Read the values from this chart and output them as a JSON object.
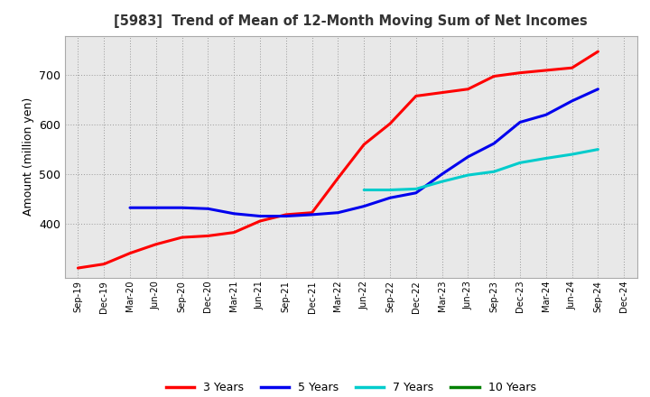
{
  "title": "[5983]  Trend of Mean of 12-Month Moving Sum of Net Incomes",
  "ylabel": "Amount (million yen)",
  "ylim": [
    290,
    780
  ],
  "yticks": [
    400,
    500,
    600,
    700
  ],
  "background_color": "#ffffff",
  "plot_bg_color": "#e8e8e8",
  "grid_color": "#999999",
  "x_labels": [
    "Sep-19",
    "Dec-19",
    "Mar-20",
    "Jun-20",
    "Sep-20",
    "Dec-20",
    "Mar-21",
    "Jun-21",
    "Sep-21",
    "Dec-21",
    "Mar-22",
    "Jun-22",
    "Sep-22",
    "Dec-22",
    "Mar-23",
    "Jun-23",
    "Sep-23",
    "Dec-23",
    "Mar-24",
    "Jun-24",
    "Sep-24",
    "Dec-24"
  ],
  "series": [
    {
      "name": "3 Years",
      "color": "#ff0000",
      "data": [
        310,
        318,
        340,
        358,
        372,
        375,
        382,
        405,
        418,
        422,
        492,
        560,
        602,
        658,
        665,
        672,
        698,
        705,
        710,
        715,
        748,
        null
      ]
    },
    {
      "name": "5 Years",
      "color": "#0000ee",
      "data": [
        null,
        null,
        432,
        432,
        432,
        430,
        420,
        415,
        415,
        418,
        422,
        435,
        452,
        462,
        500,
        535,
        562,
        605,
        620,
        648,
        672,
        null
      ]
    },
    {
      "name": "7 Years",
      "color": "#00cccc",
      "data": [
        null,
        null,
        null,
        null,
        null,
        null,
        null,
        null,
        null,
        null,
        null,
        468,
        468,
        470,
        485,
        498,
        505,
        523,
        532,
        540,
        550,
        null
      ]
    },
    {
      "name": "10 Years",
      "color": "#008000",
      "data": [
        null,
        null,
        null,
        null,
        null,
        null,
        null,
        null,
        null,
        null,
        null,
        null,
        null,
        null,
        null,
        null,
        null,
        null,
        null,
        null,
        null,
        null
      ]
    }
  ],
  "legend_entries": [
    {
      "label": "3 Years",
      "color": "#ff0000"
    },
    {
      "label": "5 Years",
      "color": "#0000ee"
    },
    {
      "label": "7 Years",
      "color": "#00cccc"
    },
    {
      "label": "10 Years",
      "color": "#008000"
    }
  ]
}
